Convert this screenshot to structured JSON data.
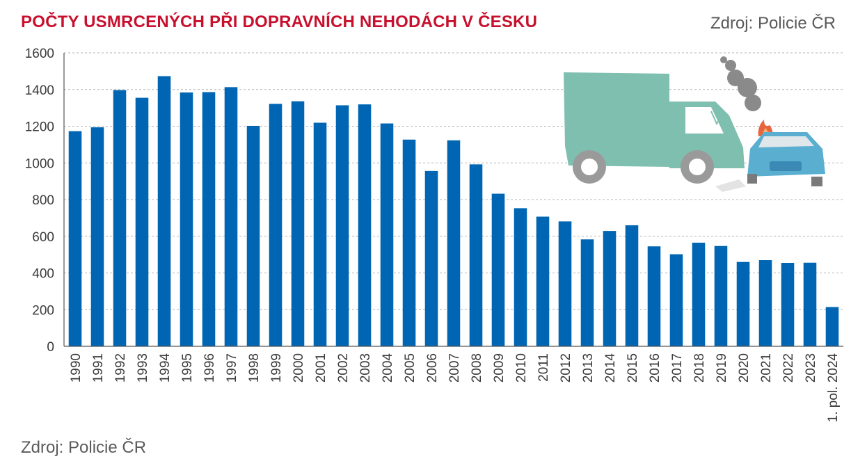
{
  "header": {
    "title": "POČTY USMRCENÝCH PŘI DOPRAVNÍCH NEHODÁCH V ČESKU",
    "source_top": "Zdroj: Policie ČR"
  },
  "footer": {
    "source": "Zdroj: Policie ČR"
  },
  "colors": {
    "bar": "#0066b3",
    "title": "#c8102e",
    "grid": "#b5b5b5",
    "truck": "#7fbfb0",
    "car": "#5aaed0",
    "smoke": "#8a8a8a",
    "fire": "#e8643c"
  },
  "illustration": {
    "icon": "truck-car-crash-icon"
  },
  "chart_data": {
    "type": "bar",
    "title": "POČTY USMRCENÝCH PŘI DOPRAVNÍCH NEHODÁCH V ČESKU",
    "xlabel": "",
    "ylabel": "",
    "ylim": [
      0,
      1600
    ],
    "yticks": [
      0,
      200,
      400,
      600,
      800,
      1000,
      1200,
      1400,
      1600
    ],
    "grid": true,
    "legend": "none",
    "categories": [
      "1990",
      "1991",
      "1992",
      "1993",
      "1994",
      "1995",
      "1996",
      "1997",
      "1998",
      "1999",
      "2000",
      "2001",
      "2002",
      "2003",
      "2004",
      "2005",
      "2006",
      "2007",
      "2008",
      "2009",
      "2010",
      "2011",
      "2012",
      "2013",
      "2014",
      "2015",
      "2016",
      "2017",
      "2018",
      "2019",
      "2020",
      "2021",
      "2022",
      "2023",
      "1. pol. 2024"
    ],
    "values": [
      1173,
      1194,
      1397,
      1355,
      1473,
      1384,
      1386,
      1413,
      1202,
      1322,
      1336,
      1219,
      1314,
      1319,
      1215,
      1127,
      956,
      1123,
      992,
      832,
      753,
      707,
      681,
      583,
      629,
      660,
      545,
      502,
      565,
      547,
      460,
      470,
      455,
      456,
      214
    ]
  }
}
